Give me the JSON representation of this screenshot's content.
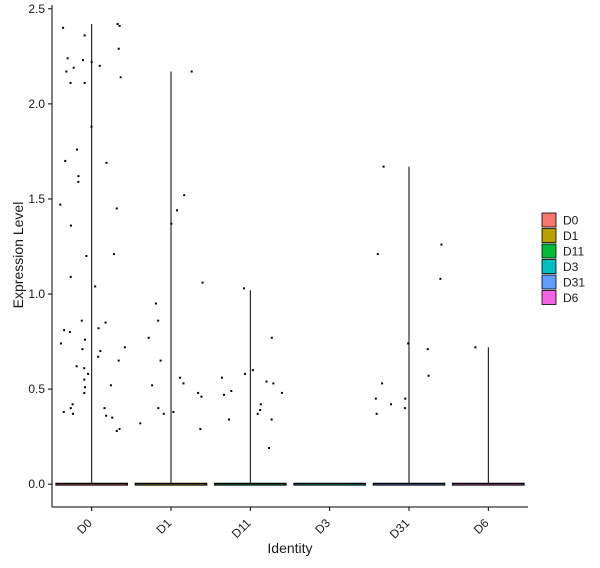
{
  "chart_data": {
    "type": "violin",
    "xlabel": "Identity",
    "ylabel": "Expression Level",
    "ylim": [
      -0.12,
      2.52
    ],
    "yticks": [
      0.0,
      0.5,
      1.0,
      1.5,
      2.0,
      2.5
    ],
    "ytick_labels": [
      "0.0",
      "0.5",
      "1.0",
      "1.5",
      "2.0",
      "2.5"
    ],
    "categories": [
      "D0",
      "D1",
      "D11",
      "D3",
      "D31",
      "D6"
    ],
    "legend": {
      "position": "right",
      "entries": [
        "D0",
        "D1",
        "D11",
        "D3",
        "D31",
        "D6"
      ]
    },
    "grid": false,
    "colors": {
      "D0": "#F8766D",
      "D1": "#B79F00",
      "D11": "#00BA38",
      "D3": "#00BFC4",
      "D31": "#619CFF",
      "D6": "#F564E3"
    },
    "violin_max": [
      2.42,
      2.17,
      1.02,
      0.0,
      1.67,
      0.72
    ],
    "points": {
      "D0": [
        2.42,
        2.41,
        2.4,
        2.36,
        2.29,
        2.24,
        2.23,
        2.22,
        2.2,
        2.19,
        2.17,
        2.14,
        2.11,
        2.11,
        1.88,
        1.76,
        1.7,
        1.69,
        1.62,
        1.59,
        1.47,
        1.45,
        1.36,
        1.21,
        1.2,
        1.09,
        1.04,
        0.86,
        0.85,
        0.82,
        0.81,
        0.8,
        0.76,
        0.74,
        0.72,
        0.71,
        0.7,
        0.67,
        0.65,
        0.62,
        0.61,
        0.58,
        0.55,
        0.52,
        0.51,
        0.48,
        0.42,
        0.4,
        0.4,
        0.38,
        0.37,
        0.36,
        0.35,
        0.29,
        0.28
      ],
      "D1": [
        2.17,
        1.52,
        1.44,
        1.37,
        1.06,
        0.95,
        0.86,
        0.77,
        0.65,
        0.56,
        0.53,
        0.52,
        0.48,
        0.46,
        0.4,
        0.38,
        0.37,
        0.32,
        0.29
      ],
      "D11": [
        1.03,
        0.77,
        0.6,
        0.58,
        0.56,
        0.54,
        0.53,
        0.49,
        0.48,
        0.47,
        0.42,
        0.39,
        0.37,
        0.34,
        0.34,
        0.19
      ],
      "D3": [],
      "D31": [
        1.67,
        1.26,
        1.21,
        1.08,
        0.74,
        0.71,
        0.57,
        0.53,
        0.45,
        0.45,
        0.42,
        0.4,
        0.37
      ],
      "D6": [
        0.72
      ]
    }
  }
}
